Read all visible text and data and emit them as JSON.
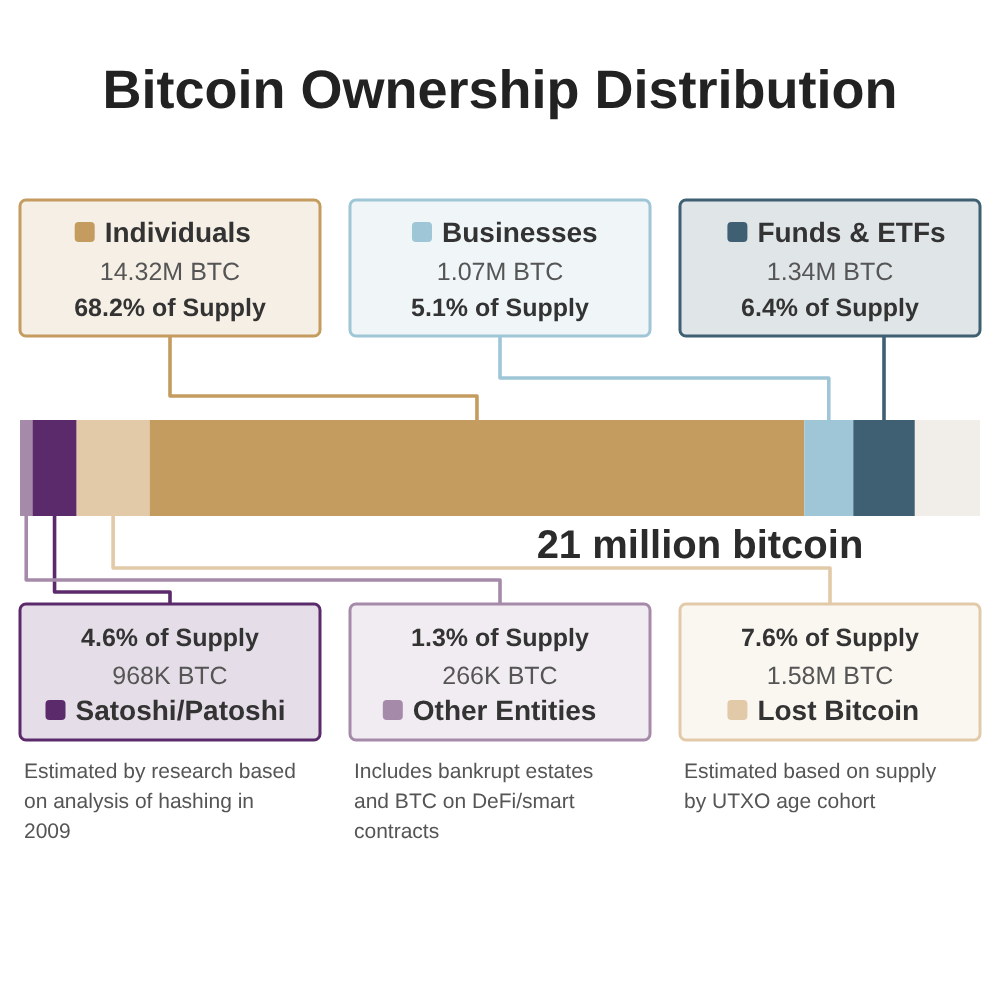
{
  "chart_data": {
    "type": "bar",
    "orientation": "horizontal",
    "stacked": true,
    "title": "Bitcoin Ownership Distribution",
    "xlabel": "21 million bitcoin",
    "categories": [
      null
    ],
    "xlim": [
      0,
      100
    ],
    "legend": "bottom left",
    "series": [
      {
        "name": "Other Entities",
        "color": "#a58aaa",
        "values": [
          1.3
        ],
        "value_labels": [
          "1.3% of Supply"
        ]
      },
      {
        "name": "Satoshi/Patoshi",
        "color": "#5b2a6a",
        "values": [
          4.6
        ],
        "value_labels": [
          "4.6% of Supply"
        ]
      },
      {
        "name": "Lost Bitcoin",
        "color": "#e2caa8",
        "values": [
          7.6
        ],
        "value_labels": [
          "7.6% of Supply"
        ]
      },
      {
        "name": "Individuals",
        "color": "#c49c5f",
        "values": [
          68.2
        ],
        "value_labels": [
          "68.2% of Supply"
        ]
      },
      {
        "name": "Businesses",
        "color": "#9fc6d6",
        "values": [
          5.1
        ],
        "value_labels": [
          "5.1% of Supply"
        ]
      },
      {
        "name": "Funds & ETFs",
        "color": "#3f5f72",
        "values": [
          6.4
        ],
        "value_labels": [
          "6.4% of Supply"
        ]
      }
    ],
    "annotations": [
      "266K BTC",
      "968K BTC",
      "1.58M BTC",
      "14.32M BTC",
      "1.07M BTC",
      "1.34M BTC",
      "Estimated by research based on analysis of hashing in 2009",
      "Includes bankrupt estates and BTC on DeFi/smart contracts",
      "Estimated based on supply by UTXO age cohort"
    ]
  }
}
